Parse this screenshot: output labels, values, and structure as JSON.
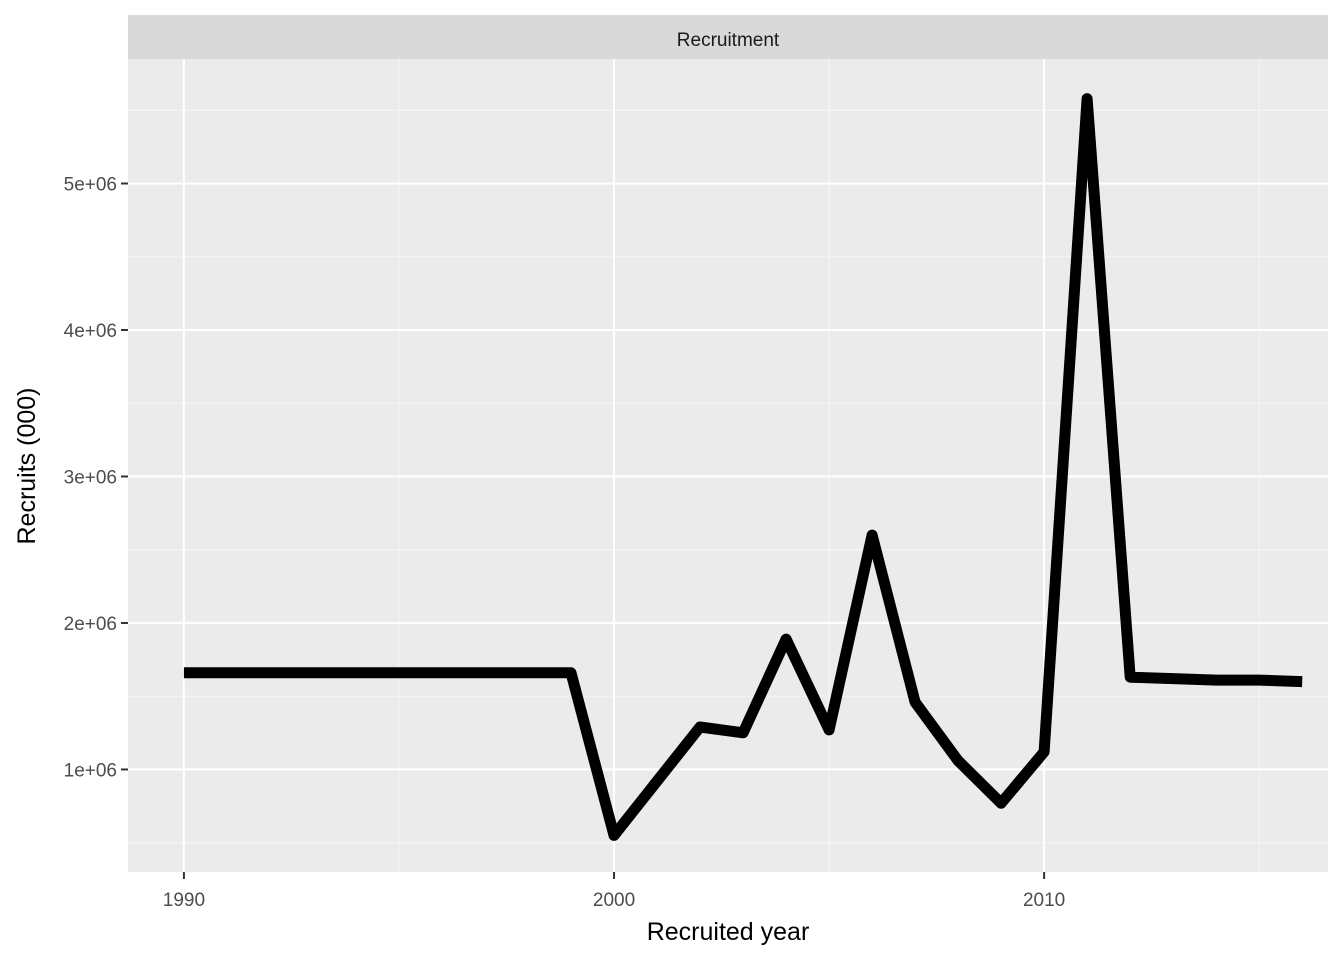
{
  "colors": {
    "panel_background": "#ebebeb",
    "strip_background": "#d9d9d9",
    "grid_major": "#ffffff",
    "grid_minor": "#f5f5f5",
    "line": "#000000",
    "tick_text": "#4d4d4d"
  },
  "chart_data": {
    "type": "line",
    "facet_label": "Recruitment",
    "xlabel": "Recruited year",
    "ylabel": "Recruits (000)",
    "x_ticks": [
      1990,
      2000,
      2010
    ],
    "x_tick_labels": [
      "1990",
      "2000",
      "2010"
    ],
    "y_ticks": [
      1000000,
      2000000,
      3000000,
      4000000,
      5000000
    ],
    "y_tick_labels": [
      "1e+06",
      "2e+06",
      "3e+06",
      "4e+06",
      "5e+06"
    ],
    "xlim": [
      1988.7,
      2016.6
    ],
    "ylim": [
      300000,
      5850000
    ],
    "grid": true,
    "series": [
      {
        "x": [
          1990,
          1991,
          1992,
          1993,
          1994,
          1995,
          1996,
          1997,
          1998,
          1999,
          2000,
          2001,
          2002,
          2003,
          2004,
          2005,
          2006,
          2007,
          2008,
          2009,
          2010,
          2011,
          2012,
          2013,
          2014,
          2015,
          2016
        ],
        "y": [
          1660000,
          1660000,
          1660000,
          1660000,
          1660000,
          1660000,
          1660000,
          1660000,
          1660000,
          1660000,
          550000,
          920000,
          1290000,
          1250000,
          1890000,
          1270000,
          2600000,
          1460000,
          1060000,
          770000,
          1120000,
          5580000,
          1630000,
          1620000,
          1610000,
          1610000,
          1600000
        ]
      }
    ]
  }
}
